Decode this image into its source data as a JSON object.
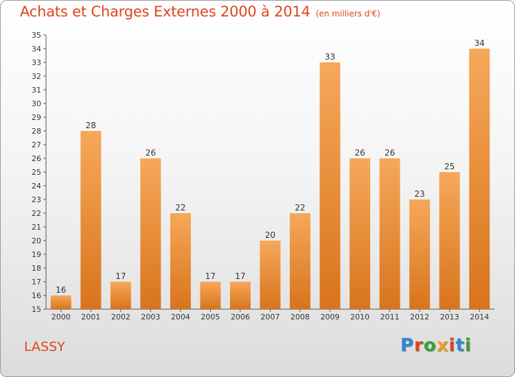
{
  "header": {
    "title": "Achats et Charges Externes 2000 à 2014",
    "subtitle": "(en milliers d'€)"
  },
  "footer": {
    "commune": "LASSY",
    "brand": "Proxiti",
    "brand_colors": [
      "#2a8ad4",
      "#e0441c",
      "#3aa03a",
      "#f0a020",
      "#e0441c",
      "#2a8ad4",
      "#3aa03a"
    ]
  },
  "colors": {
    "bar_light": "#f6a85a",
    "bar_dark": "#d8741c",
    "title": "#e0441c"
  },
  "chart_data": {
    "type": "bar",
    "title": "Achats et Charges Externes 2000 à 2014",
    "subtitle": "(en milliers d'€)",
    "categories": [
      "2000",
      "2001",
      "2002",
      "2003",
      "2004",
      "2005",
      "2006",
      "2007",
      "2008",
      "2009",
      "2010",
      "2011",
      "2012",
      "2013",
      "2014"
    ],
    "values": [
      16,
      28,
      17,
      26,
      22,
      17,
      17,
      20,
      22,
      33,
      26,
      26,
      23,
      25,
      34
    ],
    "ylim": [
      15,
      35
    ],
    "ytick_step": 1,
    "grid": false,
    "data_labels": true
  }
}
